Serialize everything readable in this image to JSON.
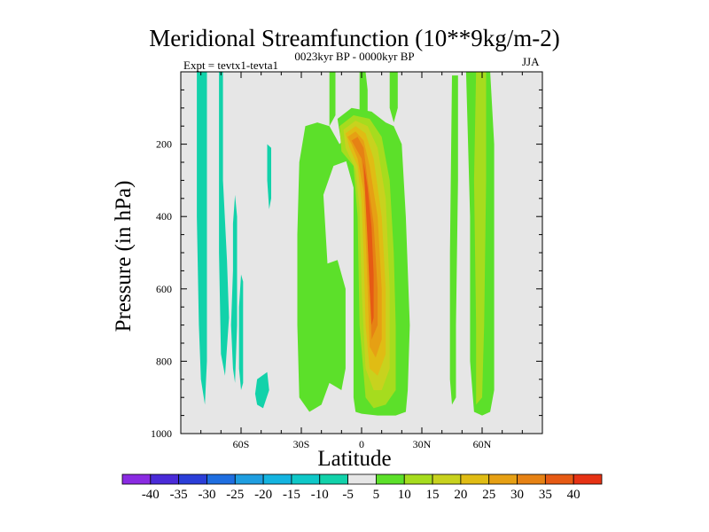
{
  "chart_data": {
    "type": "contour",
    "title": "Meridional Streamfunction (10**9kg/m-2)",
    "subtitle": "0023kyr BP - 0000kyr BP",
    "experiment": "Expt = tevtx1-tevta1",
    "season": "JJA",
    "xlabel": "Latitude",
    "ylabel": "Pressure (in hPa)",
    "xlim": [
      -90,
      90
    ],
    "ylim": [
      1000,
      0
    ],
    "x_ticks": [
      {
        "value": -60,
        "label": "60S"
      },
      {
        "value": -30,
        "label": "30S"
      },
      {
        "value": 0,
        "label": "0"
      },
      {
        "value": 30,
        "label": "30N"
      },
      {
        "value": 60,
        "label": "60N"
      }
    ],
    "y_ticks": [
      {
        "value": 200,
        "label": "200"
      },
      {
        "value": 400,
        "label": "400"
      },
      {
        "value": 600,
        "label": "600"
      },
      {
        "value": 800,
        "label": "800"
      },
      {
        "value": 1000,
        "label": "1000"
      }
    ],
    "contour_levels": [
      -40,
      -35,
      -30,
      -25,
      -20,
      -15,
      -10,
      -5,
      5,
      10,
      15,
      20,
      25,
      30,
      35,
      40
    ],
    "colorbar_labels": [
      "-40",
      "-35",
      "-30",
      "-25",
      "-20",
      "-15",
      "-10",
      "-5",
      "5",
      "10",
      "15",
      "20",
      "25",
      "30",
      "35",
      "40"
    ],
    "colorbar_colors": [
      "#8a2be2",
      "#4a2bd8",
      "#2b3ed8",
      "#1f6ee0",
      "#1f9ee0",
      "#14b4e0",
      "#0fc8c8",
      "#12d2aa",
      "#e6e6e6",
      "#5ce02a",
      "#a6dc1e",
      "#c8d21e",
      "#e0bc14",
      "#e6a014",
      "#e68214",
      "#e65a14",
      "#e63214"
    ],
    "regions": [
      {
        "name": "cyan-band-1",
        "fill": "#12d2aa",
        "pts": [
          [
            -82,
            0
          ],
          [
            -77,
            0
          ],
          [
            -77,
            600
          ],
          [
            -77,
            800
          ],
          [
            -78,
            920
          ],
          [
            -80,
            850
          ],
          [
            -81,
            700
          ],
          [
            -82,
            400
          ]
        ]
      },
      {
        "name": "cyan-band-2",
        "fill": "#12d2aa",
        "pts": [
          [
            -71,
            0
          ],
          [
            -69,
            0
          ],
          [
            -69,
            300
          ],
          [
            -67,
            520
          ],
          [
            -66,
            680
          ],
          [
            -68,
            840
          ],
          [
            -70,
            780
          ],
          [
            -71,
            500
          ]
        ]
      },
      {
        "name": "cyan-band-3",
        "fill": "#12d2aa",
        "pts": [
          [
            -64,
            420
          ],
          [
            -63,
            340
          ],
          [
            -62,
            400
          ],
          [
            -62,
            700
          ],
          [
            -63,
            860
          ],
          [
            -64,
            820
          ],
          [
            -65,
            700
          ],
          [
            -64,
            550
          ]
        ]
      },
      {
        "name": "cyan-band-4",
        "fill": "#12d2aa",
        "pts": [
          [
            -60,
            560
          ],
          [
            -59,
            580
          ],
          [
            -59,
            860
          ],
          [
            -60,
            880
          ],
          [
            -61,
            820
          ],
          [
            -61,
            650
          ]
        ]
      },
      {
        "name": "cyan-blob-1",
        "fill": "#12d2aa",
        "pts": [
          [
            -47,
            200
          ],
          [
            -45,
            210
          ],
          [
            -45,
            350
          ],
          [
            -46,
            380
          ],
          [
            -47,
            300
          ]
        ]
      },
      {
        "name": "cyan-blob-2",
        "fill": "#12d2aa",
        "pts": [
          [
            -52,
            850
          ],
          [
            -47,
            830
          ],
          [
            -46,
            880
          ],
          [
            -49,
            930
          ],
          [
            -52,
            920
          ],
          [
            -53,
            890
          ]
        ]
      },
      {
        "name": "green-left-arm",
        "fill": "#5ce02a",
        "pts": [
          [
            -28,
            150
          ],
          [
            -22,
            140
          ],
          [
            -16,
            150
          ],
          [
            -11,
            200
          ],
          [
            -5,
            160
          ],
          [
            -4,
            240
          ],
          [
            -14,
            260
          ],
          [
            -19,
            340
          ],
          [
            -17,
            530
          ],
          [
            -12,
            520
          ],
          [
            -8,
            600
          ],
          [
            -8,
            820
          ],
          [
            -10,
            880
          ],
          [
            -16,
            860
          ],
          [
            -20,
            920
          ],
          [
            -26,
            940
          ],
          [
            -31,
            900
          ],
          [
            -32,
            700
          ],
          [
            -32,
            450
          ],
          [
            -31,
            250
          ]
        ]
      },
      {
        "name": "green-top-left",
        "fill": "#5ce02a",
        "pts": [
          [
            -16,
            0
          ],
          [
            -13,
            0
          ],
          [
            -13,
            120
          ],
          [
            -16,
            150
          ]
        ]
      },
      {
        "name": "green-top-mid",
        "fill": "#5ce02a",
        "pts": [
          [
            -1,
            0
          ],
          [
            2,
            0
          ],
          [
            3,
            50
          ],
          [
            3,
            120
          ],
          [
            -1,
            120
          ]
        ]
      },
      {
        "name": "green-top-right",
        "fill": "#5ce02a",
        "pts": [
          [
            14,
            0
          ],
          [
            18,
            0
          ],
          [
            18,
            100
          ],
          [
            16,
            140
          ],
          [
            14,
            100
          ]
        ]
      },
      {
        "name": "green-core",
        "fill": "#5ce02a",
        "pts": [
          [
            -12,
            130
          ],
          [
            -5,
            100
          ],
          [
            5,
            110
          ],
          [
            12,
            140
          ],
          [
            16,
            150
          ],
          [
            20,
            200
          ],
          [
            22,
            400
          ],
          [
            24,
            700
          ],
          [
            23,
            880
          ],
          [
            22,
            940
          ],
          [
            17,
            950
          ],
          [
            8,
            950
          ],
          [
            0,
            945
          ],
          [
            -3,
            940
          ],
          [
            -4,
            900
          ],
          [
            -4,
            600
          ],
          [
            -4,
            320
          ],
          [
            -10,
            200
          ]
        ]
      },
      {
        "name": "green-right-strip",
        "fill": "#5ce02a",
        "pts": [
          [
            45,
            10
          ],
          [
            48,
            10
          ],
          [
            48,
            300
          ],
          [
            47,
            700
          ],
          [
            47,
            900
          ],
          [
            45,
            920
          ],
          [
            44,
            850
          ],
          [
            44,
            500
          ]
        ]
      },
      {
        "name": "green-far-right",
        "fill": "#5ce02a",
        "pts": [
          [
            52,
            0
          ],
          [
            64,
            0
          ],
          [
            66,
            200
          ],
          [
            66,
            600
          ],
          [
            66,
            880
          ],
          [
            64,
            940
          ],
          [
            60,
            950
          ],
          [
            56,
            940
          ],
          [
            54,
            800
          ],
          [
            54,
            400
          ]
        ]
      },
      {
        "name": "lime-core",
        "fill": "#a6dc1e",
        "pts": [
          [
            -11,
            150
          ],
          [
            -4,
            120
          ],
          [
            4,
            130
          ],
          [
            10,
            180
          ],
          [
            14,
            300
          ],
          [
            16,
            500
          ],
          [
            17,
            700
          ],
          [
            17,
            880
          ],
          [
            12,
            920
          ],
          [
            6,
            930
          ],
          [
            2,
            900
          ],
          [
            -1,
            700
          ],
          [
            -2,
            400
          ],
          [
            -4,
            260
          ],
          [
            -10,
            220
          ]
        ]
      },
      {
        "name": "lime-right",
        "fill": "#a6dc1e",
        "pts": [
          [
            57,
            0
          ],
          [
            62,
            0
          ],
          [
            62,
            300
          ],
          [
            61,
            700
          ],
          [
            60,
            900
          ],
          [
            57,
            920
          ],
          [
            57,
            700
          ],
          [
            56,
            300
          ]
        ]
      },
      {
        "name": "yellow-core",
        "fill": "#c8d21e",
        "pts": [
          [
            -9,
            160
          ],
          [
            -3,
            135
          ],
          [
            3,
            150
          ],
          [
            8,
            210
          ],
          [
            12,
            350
          ],
          [
            14,
            600
          ],
          [
            14,
            820
          ],
          [
            10,
            880
          ],
          [
            6,
            880
          ],
          [
            2,
            820
          ],
          [
            0,
            600
          ],
          [
            -1,
            380
          ],
          [
            -3,
            270
          ],
          [
            -8,
            210
          ]
        ]
      },
      {
        "name": "gold-core",
        "fill": "#e0bc14",
        "pts": [
          [
            -8,
            170
          ],
          [
            -3,
            150
          ],
          [
            2,
            170
          ],
          [
            6,
            240
          ],
          [
            10,
            400
          ],
          [
            12,
            600
          ],
          [
            12,
            780
          ],
          [
            8,
            840
          ],
          [
            4,
            820
          ],
          [
            2,
            700
          ],
          [
            1,
            500
          ],
          [
            0,
            360
          ],
          [
            -2,
            260
          ],
          [
            -6,
            210
          ]
        ]
      },
      {
        "name": "orange-core",
        "fill": "#e6a014",
        "pts": [
          [
            -7,
            180
          ],
          [
            -3,
            165
          ],
          [
            1,
            190
          ],
          [
            4,
            260
          ],
          [
            8,
            400
          ],
          [
            10,
            600
          ],
          [
            10,
            740
          ],
          [
            7,
            790
          ],
          [
            4,
            760
          ],
          [
            3,
            600
          ],
          [
            2,
            450
          ],
          [
            1,
            330
          ],
          [
            -2,
            240
          ],
          [
            -5,
            200
          ]
        ]
      },
      {
        "name": "darkorange-core",
        "fill": "#e68214",
        "pts": [
          [
            -5,
            190
          ],
          [
            -2,
            180
          ],
          [
            1,
            210
          ],
          [
            3,
            300
          ],
          [
            6,
            420
          ],
          [
            8,
            600
          ],
          [
            8,
            700
          ],
          [
            5,
            740
          ],
          [
            4,
            600
          ],
          [
            3,
            460
          ],
          [
            2,
            340
          ],
          [
            0,
            240
          ]
        ]
      },
      {
        "name": "red-core",
        "fill": "#e65a14",
        "pts": [
          [
            1,
            250
          ],
          [
            3,
            320
          ],
          [
            5,
            430
          ],
          [
            6,
            560
          ],
          [
            6,
            680
          ],
          [
            5,
            700
          ],
          [
            4,
            600
          ],
          [
            3,
            470
          ],
          [
            2,
            360
          ]
        ]
      }
    ]
  }
}
